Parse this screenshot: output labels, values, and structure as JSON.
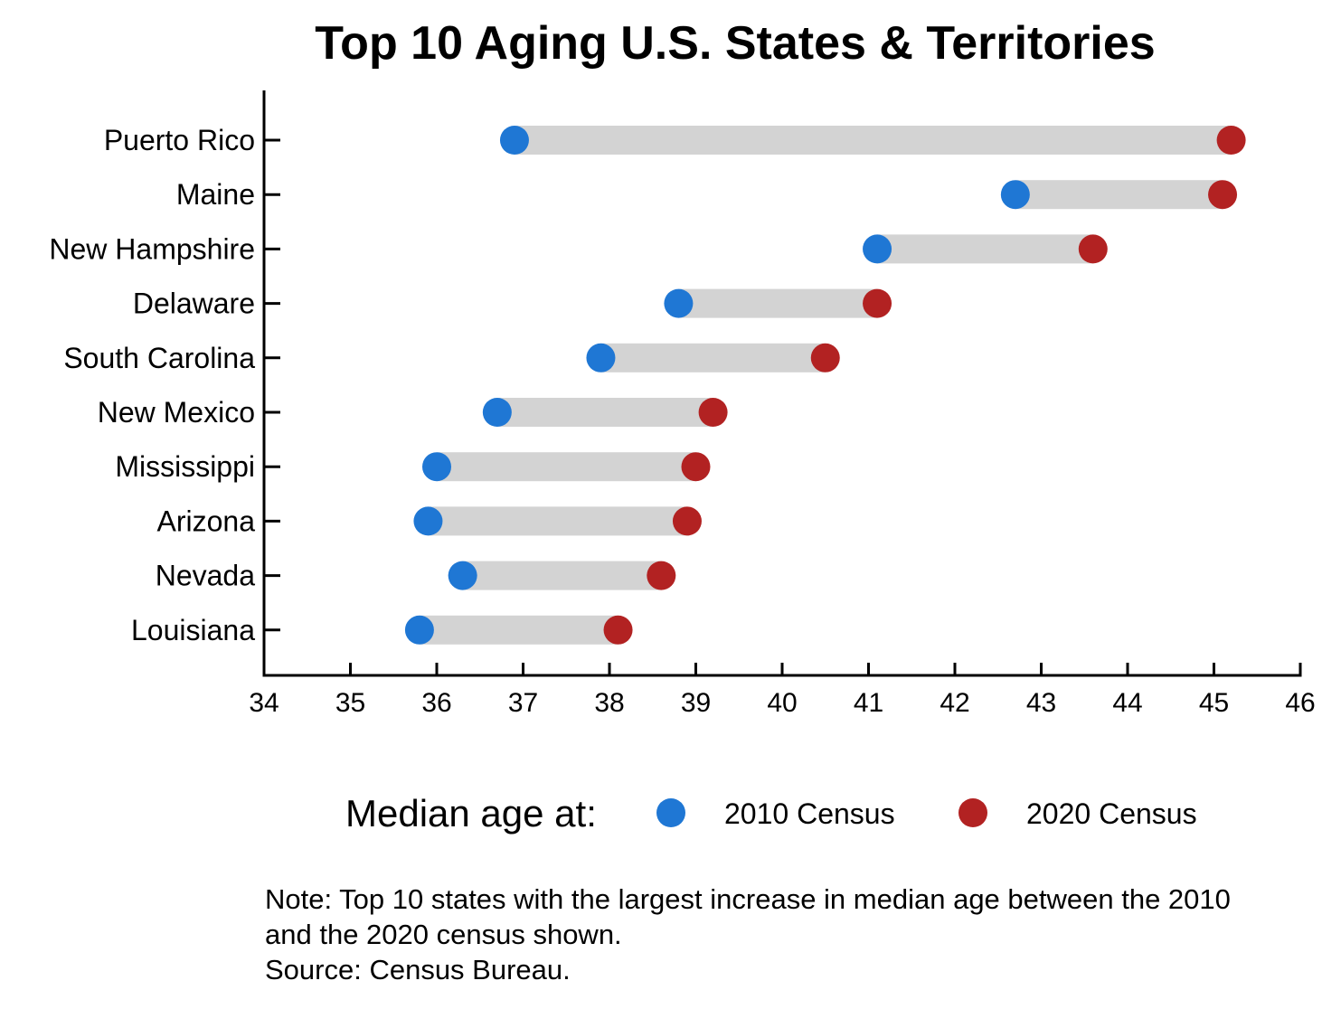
{
  "chart_data": {
    "type": "dumbbell",
    "title": "Top 10 Aging U.S. States & Territories",
    "categories": [
      "Puerto Rico",
      "Maine",
      "New Hampshire",
      "Delaware",
      "South Carolina",
      "New Mexico",
      "Mississippi",
      "Arizona",
      "Nevada",
      "Louisiana"
    ],
    "series": [
      {
        "name": "2010 Census",
        "color": "#1f77d4",
        "values": [
          36.9,
          42.7,
          41.1,
          38.8,
          37.9,
          36.7,
          36.0,
          35.9,
          36.3,
          35.8
        ]
      },
      {
        "name": "2020 Census",
        "color": "#b22222",
        "values": [
          45.2,
          45.1,
          43.6,
          41.1,
          40.5,
          39.2,
          39.0,
          38.9,
          38.6,
          38.1
        ]
      }
    ],
    "xlim": [
      34,
      46
    ],
    "xticks": [
      34,
      35,
      36,
      37,
      38,
      39,
      40,
      41,
      42,
      43,
      44,
      45,
      46
    ],
    "xlabel": "",
    "ylabel": "",
    "grid": false,
    "bar_color": "#d3d3d3",
    "legend": {
      "title": "Median age at:",
      "position": "bottom"
    },
    "note_lines": [
      "Note: Top 10 states with the largest increase in median age between the 2010",
      "and the 2020 census shown.",
      "Source: Census Bureau."
    ]
  }
}
